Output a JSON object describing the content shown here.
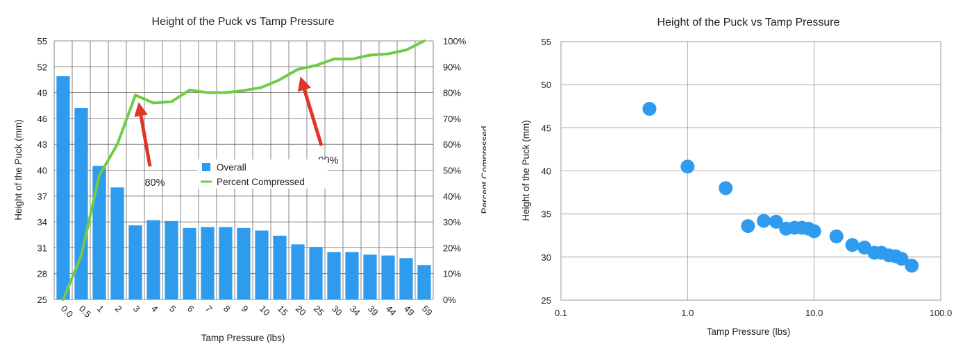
{
  "chart_data": [
    {
      "type": "bar",
      "title": "Height of the Puck vs Tamp Pressure",
      "xlabel": "Tamp Pressure (lbs)",
      "ylabel": "Height of the Puck (mm)",
      "y2label": "Percent Compressed",
      "ylim": [
        25,
        55
      ],
      "yticks": [
        "25",
        "28",
        "31",
        "34",
        "37",
        "40",
        "43",
        "46",
        "49",
        "52",
        "55"
      ],
      "y2lim": [
        0,
        100
      ],
      "y2ticks": [
        "0%",
        "10%",
        "20%",
        "30%",
        "40%",
        "50%",
        "60%",
        "70%",
        "80%",
        "90%",
        "100%"
      ],
      "categories": [
        "0.0",
        "0.5",
        "1",
        "2",
        "3",
        "4",
        "5",
        "6",
        "7",
        "8",
        "9",
        "10",
        "15",
        "20",
        "25",
        "30",
        "34",
        "39",
        "44",
        "49",
        "59"
      ],
      "grid": true,
      "legend_position": "center",
      "series": [
        {
          "name": "Overall",
          "kind": "bar",
          "axis": "left",
          "color": "#2f9bef",
          "values": [
            50.9,
            47.2,
            40.5,
            38.0,
            33.6,
            34.2,
            34.1,
            33.3,
            33.4,
            33.4,
            33.3,
            33.0,
            32.4,
            31.4,
            31.1,
            30.5,
            30.5,
            30.2,
            30.1,
            29.8,
            29.0
          ]
        },
        {
          "name": "Percent Compressed",
          "kind": "line",
          "axis": "right",
          "color": "#6fcc47",
          "values": [
            0,
            17,
            48,
            60,
            79,
            76,
            76.5,
            81,
            80,
            80,
            80.8,
            82,
            85,
            89,
            90.5,
            93,
            93,
            94.5,
            95,
            96.5,
            100
          ]
        }
      ],
      "annotations": [
        {
          "text": "80%",
          "x": "3",
          "y2": 79
        },
        {
          "text": "90%",
          "x": "20",
          "y2": 89
        }
      ],
      "colors": {
        "arrow": "#e0352a",
        "gridline": "#666666"
      }
    },
    {
      "type": "scatter",
      "title": "Height of the Puck vs Tamp Pressure",
      "xlabel": "Tamp Pressure (lbs)",
      "ylabel": "Height of the Puck (mm)",
      "xscale": "log",
      "xlim": [
        0.1,
        100
      ],
      "xticks": [
        "0.1",
        "1.0",
        "10.0",
        "100.0"
      ],
      "ylim": [
        25,
        55
      ],
      "yticks": [
        "25",
        "30",
        "35",
        "40",
        "45",
        "50",
        "55"
      ],
      "grid": true,
      "series": [
        {
          "color": "#2f9bef",
          "x": [
            0.5,
            1,
            2,
            3,
            4,
            5,
            6,
            7,
            8,
            9,
            10,
            15,
            20,
            25,
            30,
            34,
            39,
            44,
            49,
            59
          ],
          "y": [
            47.2,
            40.5,
            38.0,
            33.6,
            34.2,
            34.1,
            33.3,
            33.4,
            33.4,
            33.3,
            33.0,
            32.4,
            31.4,
            31.1,
            30.5,
            30.5,
            30.2,
            30.1,
            29.8,
            29.0
          ]
        }
      ]
    }
  ]
}
